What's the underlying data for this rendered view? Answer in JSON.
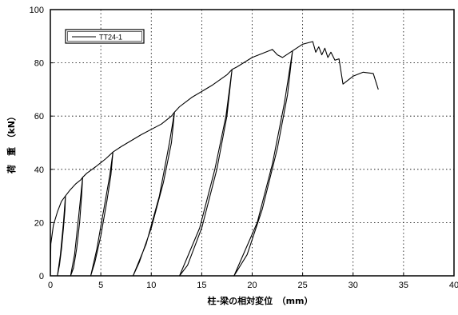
{
  "chart_data": {
    "type": "line",
    "title": "",
    "xlabel": "柱-梁の相対変位　（mm）",
    "ylabel": "荷　重　（kN）",
    "xlim": [
      0,
      40
    ],
    "ylim": [
      0,
      100
    ],
    "xticks": [
      0,
      5,
      10,
      15,
      20,
      25,
      30,
      35,
      40
    ],
    "yticks": [
      0,
      20,
      40,
      60,
      80,
      100
    ],
    "grid": true,
    "legend_position": "top-left",
    "series": [
      {
        "name": "TT24-1",
        "color": "#000000",
        "points": [
          [
            0.0,
            0.0
          ],
          [
            0.05,
            12.0
          ],
          [
            0.3,
            19.0
          ],
          [
            0.7,
            24.0
          ],
          [
            1.1,
            28.0
          ],
          [
            1.5,
            30.0
          ],
          [
            1.45,
            25.0
          ],
          [
            1.3,
            18.0
          ],
          [
            1.1,
            10.0
          ],
          [
            0.9,
            4.0
          ],
          [
            0.7,
            0.0
          ],
          [
            1.0,
            8.0
          ],
          [
            1.3,
            20.0
          ],
          [
            1.5,
            30.0
          ],
          [
            1.9,
            32.0
          ],
          [
            2.5,
            34.5
          ],
          [
            3.0,
            36.0
          ],
          [
            3.2,
            37.0
          ],
          [
            3.1,
            30.0
          ],
          [
            2.9,
            20.0
          ],
          [
            2.6,
            10.0
          ],
          [
            2.3,
            3.0
          ],
          [
            2.0,
            0.0
          ],
          [
            2.4,
            8.0
          ],
          [
            2.8,
            22.0
          ],
          [
            3.2,
            37.0
          ],
          [
            3.6,
            38.5
          ],
          [
            4.5,
            41.0
          ],
          [
            5.5,
            44.0
          ],
          [
            6.2,
            46.5
          ],
          [
            6.0,
            38.0
          ],
          [
            5.6,
            28.0
          ],
          [
            5.0,
            15.0
          ],
          [
            4.4,
            5.0
          ],
          [
            4.0,
            0.0
          ],
          [
            4.6,
            10.0
          ],
          [
            5.3,
            25.0
          ],
          [
            5.9,
            38.0
          ],
          [
            6.2,
            46.5
          ],
          [
            7.0,
            48.5
          ],
          [
            9.0,
            53.0
          ],
          [
            11.0,
            57.0
          ],
          [
            12.0,
            60.0
          ],
          [
            12.3,
            61.5
          ],
          [
            12.0,
            50.0
          ],
          [
            11.2,
            35.0
          ],
          [
            10.0,
            18.0
          ],
          [
            8.8,
            5.0
          ],
          [
            8.2,
            0.0
          ],
          [
            9.5,
            12.0
          ],
          [
            10.8,
            30.0
          ],
          [
            11.8,
            50.0
          ],
          [
            12.3,
            61.5
          ],
          [
            12.8,
            63.5
          ],
          [
            14.0,
            67.0
          ],
          [
            16.0,
            71.5
          ],
          [
            17.5,
            75.5
          ],
          [
            18.0,
            77.5
          ],
          [
            17.5,
            60.0
          ],
          [
            16.5,
            40.0
          ],
          [
            15.0,
            18.0
          ],
          [
            13.6,
            4.0
          ],
          [
            12.8,
            0.0
          ],
          [
            14.8,
            18.0
          ],
          [
            16.3,
            40.0
          ],
          [
            17.4,
            60.0
          ],
          [
            18.0,
            77.5
          ],
          [
            18.5,
            78.5
          ],
          [
            20.0,
            82.0
          ],
          [
            22.0,
            85.0
          ],
          [
            22.5,
            83.0
          ],
          [
            23.0,
            82.0
          ],
          [
            24.0,
            84.5
          ],
          [
            23.5,
            68.0
          ],
          [
            22.5,
            48.0
          ],
          [
            21.0,
            25.0
          ],
          [
            19.5,
            8.0
          ],
          [
            18.2,
            0.0
          ],
          [
            20.5,
            20.0
          ],
          [
            22.0,
            42.0
          ],
          [
            23.2,
            65.0
          ],
          [
            24.0,
            84.5
          ],
          [
            25.0,
            87.0
          ],
          [
            26.0,
            88.0
          ],
          [
            26.3,
            84.0
          ],
          [
            26.6,
            86.0
          ],
          [
            26.9,
            83.0
          ],
          [
            27.2,
            85.5
          ],
          [
            27.5,
            82.0
          ],
          [
            27.8,
            84.0
          ],
          [
            28.2,
            81.0
          ],
          [
            28.6,
            81.5
          ],
          [
            29.0,
            72.0
          ],
          [
            30.0,
            75.0
          ],
          [
            31.0,
            76.5
          ],
          [
            32.0,
            76.0
          ],
          [
            32.5,
            70.0
          ]
        ]
      }
    ]
  }
}
